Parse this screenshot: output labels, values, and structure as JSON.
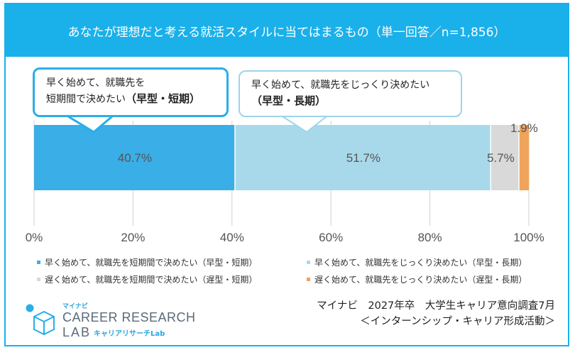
{
  "header": {
    "title": "あなたが理想だと考える就活スタイルに当てはまるもの（単一回答／n=1,856）"
  },
  "callouts": [
    {
      "line1": "早く始めて、就職先を",
      "line2": "短期間で決めたい",
      "emph": "（早型・短期）"
    },
    {
      "line1": "早く始めて、就職先をじっくり決めたい",
      "line2": "",
      "emph": "（早型・長期）"
    }
  ],
  "chart_data": {
    "type": "bar",
    "orientation": "horizontal-stacked-100",
    "series": [
      {
        "name": "早く始めて、就職先を短期間で決めたい（早型・短期）",
        "value": 40.7,
        "label": "40.7%",
        "color": "#3aaee6"
      },
      {
        "name": "早く始めて、就職先をじっくり決めたい（早型・長期）",
        "value": 51.7,
        "label": "51.7%",
        "color": "#a8d9ea"
      },
      {
        "name": "遅く始めて、就職先を短期間で決めたい（遅型・短期）",
        "value": 5.7,
        "label": "5.7%",
        "color": "#d9d9d9"
      },
      {
        "name": "遅く始めて、就職先をじっくり決めたい（遅型・長期）",
        "value": 1.9,
        "label": "1.9%",
        "color": "#f0a35a"
      }
    ],
    "xlim": [
      0,
      100
    ],
    "ticks": [
      "0%",
      "20%",
      "40%",
      "60%",
      "80%",
      "100%"
    ],
    "grid": true,
    "legend_position": "bottom"
  },
  "logo": {
    "small": "マイナビ",
    "main1": "CAREER RESEARCH",
    "main2": "LAB",
    "sub": "キャリアリサーチLab"
  },
  "source": {
    "line1": "マイナビ　2027年卒　大学生キャリア意向調査7月",
    "line2": "＜インターンシップ・キャリア形成活動＞"
  }
}
